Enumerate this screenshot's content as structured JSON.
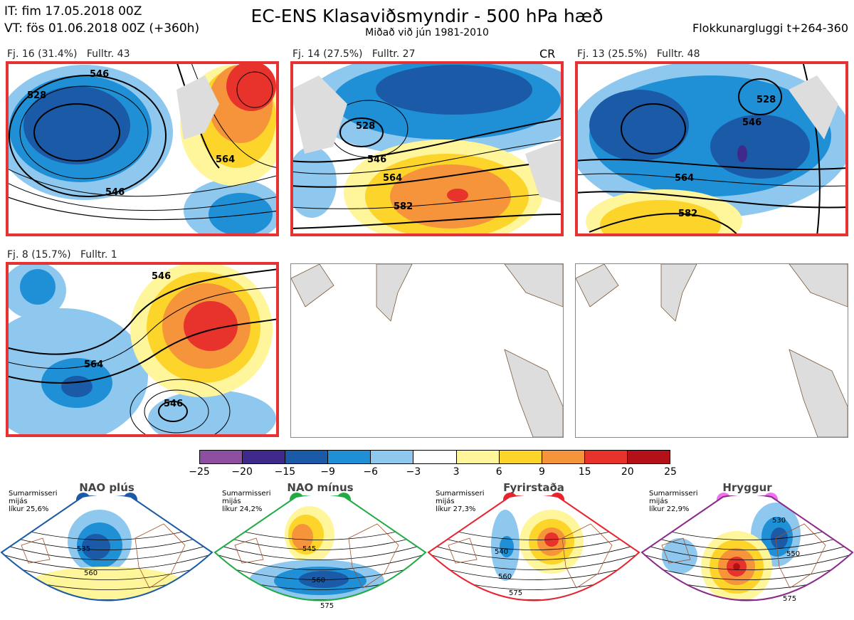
{
  "header": {
    "it_line": "IT: fim 17.05.2018 00Z",
    "vt_line": "VT: fös 01.06.2018 00Z  (+360h)",
    "title": "EC-ENS Klasaviðsmyndir - 500 hPa hæð",
    "subtitle": "Miðað við jún 1981-2010",
    "window": "Flokkunargluggi t+264-360"
  },
  "panels": [
    {
      "label": "Fj. 16 (31.4%)",
      "rep": "Fulltr. 43",
      "contours": [
        "546",
        "528",
        "546",
        "564"
      ]
    },
    {
      "label": "Fj. 14 (27.5%)",
      "rep": "Fulltr. 27",
      "marker": "CR",
      "contours": [
        "528",
        "546",
        "564",
        "582"
      ]
    },
    {
      "label": "Fj. 13 (25.5%)",
      "rep": "Fulltr. 48",
      "contours": [
        "528",
        "546",
        "564",
        "582"
      ]
    },
    {
      "label": "Fj. 8 (15.7%)",
      "rep": "Fulltr. 1",
      "contours": [
        "546",
        "564",
        "546"
      ]
    }
  ],
  "colorbar": {
    "ticks": [
      "−25",
      "−20",
      "−15",
      "−9",
      "−6",
      "−3",
      "3",
      "6",
      "9",
      "15",
      "20",
      "25"
    ],
    "colors": [
      "#8e4fa0",
      "#3f2a8c",
      "#1a5aa6",
      "#1f8fd6",
      "#8ec8ee",
      "#ffffff",
      "#fff59a",
      "#fcd42a",
      "#f5943a",
      "#e8332d",
      "#b31018"
    ]
  },
  "regimes": [
    {
      "name": "NAO plús",
      "info": [
        "Sumarmisseri",
        "mijás",
        "líkur 25,6%"
      ],
      "color": "#1a5aa6",
      "contours": [
        "535",
        "560"
      ]
    },
    {
      "name": "NAO mínus",
      "info": [
        "Sumarmisseri",
        "mijás",
        "líkur 24,2%"
      ],
      "color": "#22aa44",
      "contours": [
        "545",
        "560",
        "575"
      ]
    },
    {
      "name": "Fyrirstaða",
      "info": [
        "Sumarmisseri",
        "mijás",
        "líkur 27,3%"
      ],
      "color": "#e8232d",
      "contours": [
        "540",
        "560",
        "575"
      ]
    },
    {
      "name": "Hryggur",
      "info": [
        "Sumarmisseri",
        "mijás",
        "líkur 22,9%"
      ],
      "color": "#8a2a8a",
      "dot_color": "#f070f0",
      "contours": [
        "530",
        "550",
        "575"
      ]
    }
  ]
}
